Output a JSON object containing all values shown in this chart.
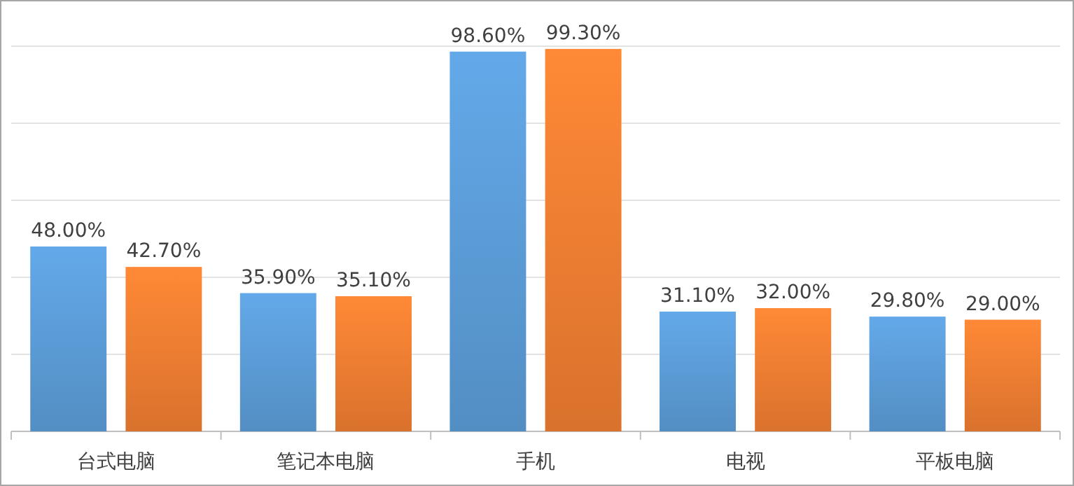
{
  "chart_data": {
    "type": "bar",
    "categories": [
      "台式电脑",
      "笔记本电脑",
      "手机",
      "电视",
      "平板电脑"
    ],
    "series": [
      {
        "color": "#5b9bd5",
        "values": [
          48,
          35.9,
          98.6,
          31.1,
          29.8
        ],
        "value_labels": [
          "48.00%",
          "35.90%",
          "98.60%",
          "31.10%",
          "29.80%"
        ]
      },
      {
        "color": "#ed7d31",
        "values": [
          42.7,
          35.1,
          99.3,
          32,
          29
        ],
        "value_labels": [
          "42.70%",
          "35.10%",
          "99.30%",
          "32.00%",
          "29.00%"
        ]
      }
    ],
    "ylim": [
      0,
      100
    ],
    "yticks": [
      {
        "value": 0,
        "label": null
      },
      {
        "value": 20,
        "label": null
      },
      {
        "value": 40,
        "label": null
      },
      {
        "value": 60,
        "label": null
      },
      {
        "value": 80,
        "label": null
      },
      {
        "value": 100,
        "label": null
      }
    ],
    "grid": "y",
    "tick_labels": "x"
  }
}
